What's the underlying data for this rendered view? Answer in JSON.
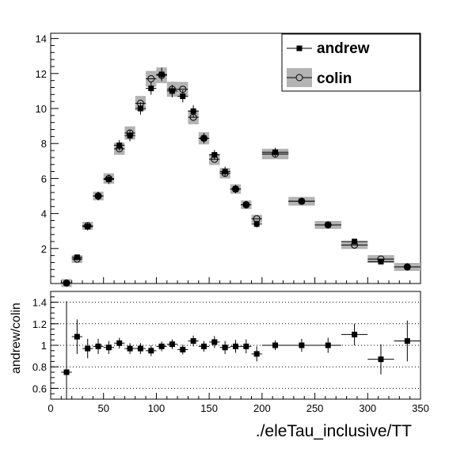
{
  "chart_data": [
    {
      "type": "scatter",
      "x": [
        15,
        25,
        35,
        45,
        55,
        65,
        75,
        85,
        95,
        105,
        115,
        125,
        135,
        145,
        155,
        165,
        175,
        185,
        195,
        212.5,
        237.5,
        262.5,
        287.5,
        312.5,
        337.5
      ],
      "x_halfwidth": [
        5,
        5,
        5,
        5,
        5,
        5,
        5,
        5,
        5,
        5,
        5,
        5,
        5,
        5,
        5,
        5,
        5,
        5,
        5,
        12.5,
        12.5,
        12.5,
        12.5,
        12.5,
        12.5
      ],
      "series": [
        {
          "name": "andrew",
          "marker": "filled-square",
          "color": "#000000",
          "values": [
            0.02,
            1.5,
            3.25,
            5.0,
            5.95,
            7.9,
            8.45,
            10.0,
            11.15,
            11.95,
            11.0,
            10.7,
            9.85,
            8.3,
            7.35,
            6.4,
            5.4,
            4.5,
            3.4,
            7.5,
            4.7,
            3.35,
            2.4,
            1.25,
            0.95
          ],
          "errors": [
            0.05,
            0.15,
            0.22,
            0.25,
            0.27,
            0.3,
            0.32,
            0.35,
            0.36,
            0.38,
            0.36,
            0.35,
            0.34,
            0.3,
            0.28,
            0.27,
            0.24,
            0.22,
            0.2,
            0.25,
            0.2,
            0.17,
            0.15,
            0.12,
            0.1
          ]
        },
        {
          "name": "colin",
          "marker": "open-circle",
          "color": "#000000",
          "band_color": "#b3b3b3",
          "values": [
            0.03,
            1.4,
            3.3,
            5.0,
            6.0,
            7.7,
            8.6,
            10.3,
            11.7,
            11.9,
            11.1,
            11.1,
            9.5,
            8.3,
            7.1,
            6.3,
            5.4,
            4.5,
            3.7,
            7.4,
            4.7,
            3.35,
            2.2,
            1.4,
            0.95
          ],
          "band_halfheight": [
            0.05,
            0.12,
            0.2,
            0.25,
            0.3,
            0.35,
            0.38,
            0.42,
            0.45,
            0.45,
            0.43,
            0.42,
            0.4,
            0.35,
            0.33,
            0.3,
            0.27,
            0.25,
            0.22,
            0.3,
            0.25,
            0.2,
            0.17,
            0.13,
            0.1
          ]
        }
      ],
      "xlim": [
        0,
        350
      ],
      "ylim": [
        0,
        14.3
      ],
      "yticks": [
        2,
        4,
        6,
        8,
        10,
        12,
        14
      ],
      "legend": {
        "placement": "top-right",
        "entries": [
          "andrew",
          "colin"
        ]
      }
    },
    {
      "type": "scatter",
      "ylabel": "andrew/colin",
      "xlabel": "./eleTau_inclusive/TT",
      "x": [
        15,
        25,
        35,
        45,
        55,
        65,
        75,
        85,
        95,
        105,
        115,
        125,
        135,
        145,
        155,
        165,
        175,
        185,
        195,
        212.5,
        237.5,
        262.5,
        287.5,
        312.5,
        337.5
      ],
      "x_halfwidth": [
        5,
        5,
        5,
        5,
        5,
        5,
        5,
        5,
        5,
        5,
        5,
        5,
        5,
        5,
        5,
        5,
        5,
        5,
        5,
        12.5,
        12.5,
        12.5,
        12.5,
        12.5,
        12.5
      ],
      "values": [
        0.75,
        1.08,
        0.97,
        0.99,
        0.98,
        1.02,
        0.97,
        0.97,
        0.95,
        0.99,
        1.01,
        0.96,
        1.04,
        0.99,
        1.03,
        0.98,
        0.99,
        0.99,
        0.92,
        1.0,
        1.0,
        1.0,
        1.1,
        0.87,
        1.04
      ],
      "errors": [
        0.66,
        0.16,
        0.09,
        0.07,
        0.06,
        0.05,
        0.05,
        0.05,
        0.05,
        0.045,
        0.045,
        0.045,
        0.05,
        0.05,
        0.055,
        0.06,
        0.06,
        0.065,
        0.07,
        0.045,
        0.06,
        0.07,
        0.1,
        0.14,
        0.19
      ],
      "xlim": [
        0,
        350
      ],
      "ylim": [
        0.5,
        1.5
      ],
      "yticks": [
        0.6,
        0.8,
        1.0,
        1.2,
        1.4
      ],
      "ytick_labels": [
        "0.6",
        "0.8",
        "1",
        "1.2",
        "1.4"
      ],
      "xticks": [
        0,
        50,
        100,
        150,
        200,
        250,
        300,
        350
      ],
      "reference_lines": [
        0.6,
        0.8,
        1.0,
        1.2,
        1.4
      ]
    }
  ]
}
